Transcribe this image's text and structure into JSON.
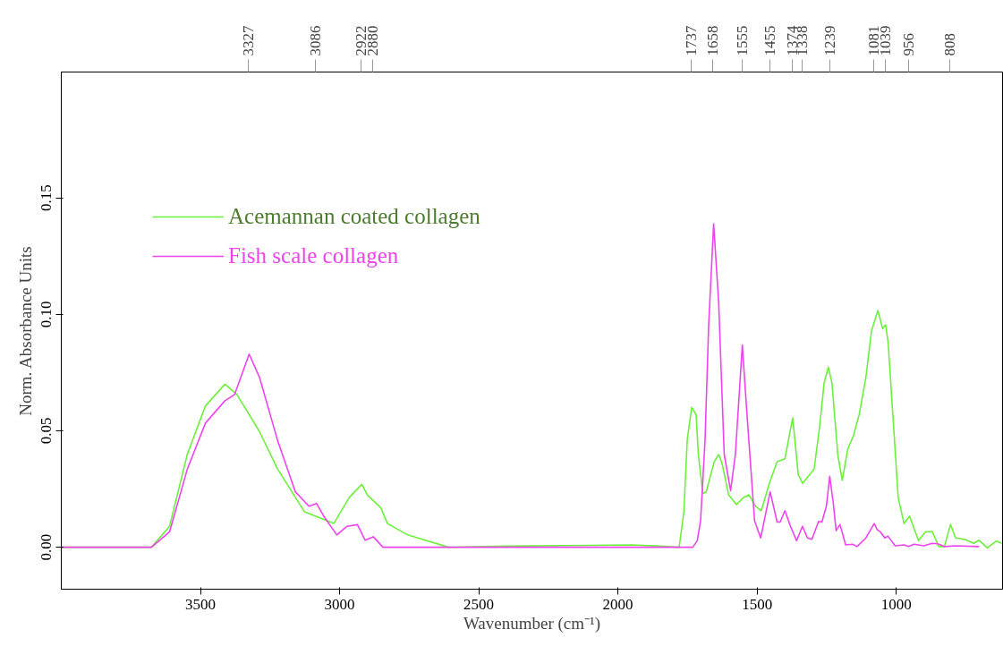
{
  "chart_data": {
    "type": "line",
    "xlabel": "Wavenumber (cm⁻¹)",
    "ylabel": "Norm. Absorbance Units",
    "xlim": [
      4000,
      618
    ],
    "xticks": [
      3500,
      3000,
      2500,
      2000,
      1500,
      1000
    ],
    "ylim": [
      -0.018,
      0.204
    ],
    "yticks": [
      {
        "value": 0,
        "label": "0.00"
      },
      {
        "value": 0.05,
        "label": "0.05"
      },
      {
        "value": 0.1,
        "label": "0.10"
      },
      {
        "value": 0.15,
        "label": "0.15"
      }
    ],
    "grid": false,
    "legend": "top left",
    "marker": "none",
    "line_style": "solid",
    "series": [
      {
        "name": "Acemannan coated collagen",
        "color": "#6cf03c",
        "x": [
          4000,
          3800,
          3676,
          3611,
          3547,
          3482,
          3412,
          3369,
          3288,
          3223,
          3126,
          3021,
          2965,
          2920,
          2900,
          2852,
          2828,
          2755,
          2609,
          2400,
          2100,
          1949,
          1850,
          1780,
          1763,
          1751,
          1735,
          1719,
          1711,
          1695,
          1683,
          1654,
          1638,
          1626,
          1602,
          1574,
          1549,
          1529,
          1505,
          1485,
          1456,
          1428,
          1400,
          1372,
          1352,
          1336,
          1295,
          1275,
          1259,
          1244,
          1231,
          1210,
          1194,
          1174,
          1154,
          1133,
          1109,
          1089,
          1066,
          1049,
          1038,
          1029,
          1013,
          993,
          972,
          952,
          920,
          895,
          871,
          847,
          827,
          805,
          787,
          754,
          722,
          702,
          673,
          641,
          621
        ],
        "values": [
          0,
          0,
          0,
          0.009,
          0.04,
          0.0607,
          0.07,
          0.0656,
          0.0497,
          0.0336,
          0.0152,
          0.0102,
          0.0214,
          0.027,
          0.0224,
          0.017,
          0.0102,
          0.0053,
          0,
          0.0005,
          0.0008,
          0.001,
          0.0005,
          0,
          0.0152,
          0.046,
          0.06,
          0.057,
          0.0398,
          0.0231,
          0.0238,
          0.0367,
          0.0398,
          0.036,
          0.0225,
          0.0183,
          0.0213,
          0.0225,
          0.0176,
          0.0157,
          0.0274,
          0.0367,
          0.038,
          0.0555,
          0.0311,
          0.0274,
          0.0336,
          0.052,
          0.0706,
          0.0773,
          0.0706,
          0.0398,
          0.0287,
          0.0422,
          0.0478,
          0.057,
          0.073,
          0.0928,
          0.1016,
          0.0939,
          0.0955,
          0.0878,
          0.0583,
          0.0214,
          0.0102,
          0.0133,
          0.0028,
          0.0066,
          0.0068,
          0.0003,
          0.0003,
          0.0098,
          0.004,
          0.0034,
          0.0017,
          0.003,
          -0.0003,
          0.0026,
          0.0017
        ]
      },
      {
        "name": "Fish scale collagen",
        "color": "#ee44ee",
        "x": [
          4000,
          3800,
          3676,
          3611,
          3547,
          3482,
          3412,
          3377,
          3325,
          3288,
          3223,
          3159,
          3110,
          3083,
          3054,
          3010,
          2973,
          2936,
          2908,
          2879,
          2844,
          2500,
          2000,
          1731,
          1715,
          1703,
          1687,
          1674,
          1656,
          1638,
          1618,
          1595,
          1578,
          1553,
          1537,
          1509,
          1487,
          1453,
          1428,
          1417,
          1400,
          1380,
          1358,
          1337,
          1319,
          1303,
          1279,
          1267,
          1251,
          1239,
          1226,
          1216,
          1202,
          1182,
          1157,
          1141,
          1109,
          1079,
          1068,
          1057,
          1041,
          1030,
          1004,
          972,
          956,
          936,
          900,
          871,
          851,
          827,
          787,
          702
        ],
        "values": [
          0,
          0,
          0,
          0.0066,
          0.0336,
          0.0533,
          0.0629,
          0.0656,
          0.0829,
          0.073,
          0.0459,
          0.0238,
          0.0176,
          0.0188,
          0.0128,
          0.0053,
          0.009,
          0.0097,
          0.003,
          0.0045,
          0,
          0,
          0,
          0,
          0.0028,
          0.0114,
          0.0459,
          0.0952,
          0.1389,
          0.105,
          0.0398,
          0.0243,
          0.0398,
          0.0868,
          0.0583,
          0.0114,
          0.004,
          0.0238,
          0.0108,
          0.0108,
          0.0157,
          0.009,
          0.0028,
          0.009,
          0.004,
          0.0034,
          0.0111,
          0.0108,
          0.0176,
          0.0305,
          0.0188,
          0.0071,
          0.0098,
          0.001,
          0.0013,
          0.0003,
          0.004,
          0.0102,
          0.0075,
          0.0066,
          0.004,
          0.0048,
          0.0006,
          0.001,
          0.0003,
          0.0013,
          0.0006,
          0.0017,
          0.0015,
          0.0003,
          0.0006,
          0.0003
        ]
      }
    ],
    "x2lim": [
      4000,
      618
    ],
    "x2ticks": [
      3327,
      3086,
      2922,
      2880,
      1737,
      1658,
      1555,
      1455,
      1374,
      1338,
      1239,
      1081,
      1039,
      956,
      808
    ]
  }
}
